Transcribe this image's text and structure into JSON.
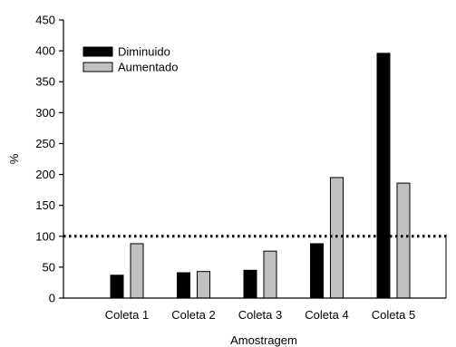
{
  "chart_data": {
    "type": "bar",
    "xlabel": "Amostragem",
    "ylabel": "%",
    "ylim": [
      0,
      450
    ],
    "yticks": [
      0,
      50,
      100,
      150,
      200,
      250,
      300,
      350,
      400,
      450
    ],
    "categories": [
      "Coleta 1",
      "Coleta 2",
      "Coleta 3",
      "Coleta 4",
      "Coleta 5"
    ],
    "series": [
      {
        "name": "Diminuido",
        "color": "#000000",
        "values": [
          37,
          41,
          45,
          88,
          396
        ]
      },
      {
        "name": "Aumentado",
        "color": "#c0c0c0",
        "values": [
          88,
          43,
          76,
          195,
          186
        ]
      }
    ],
    "reference_line": {
      "value": 100,
      "style": "dotted"
    },
    "legend_position": "top-left",
    "grid": false
  }
}
